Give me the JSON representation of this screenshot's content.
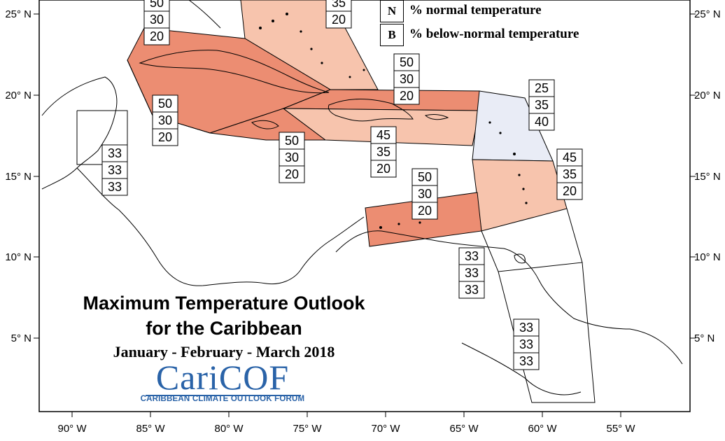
{
  "axis": {
    "lon_labels": [
      "90° W",
      "85° W",
      "80° W",
      "75° W",
      "70° W",
      "65° W",
      "60° W",
      "55° W"
    ],
    "lat_labels": [
      "25° N",
      "20° N",
      "15° N",
      "10° N",
      "5° N"
    ]
  },
  "legend": {
    "items": [
      {
        "key": "N",
        "text": "% normal temperature"
      },
      {
        "key": "B",
        "text": "% below-normal temperature"
      }
    ]
  },
  "title": {
    "line1": "Maximum Temperature Outlook",
    "line2": "for the Caribbean",
    "line3": "January - February - March 2018"
  },
  "logo": {
    "name": "CariCOF",
    "subtitle": "CARIBBEAN CLIMATE OUTLOOK FORUM"
  },
  "colors": {
    "above_50": "#ec8d72",
    "above_45": "#f7c4ad",
    "normal": "#e9ecf6",
    "boundary": "#000000"
  },
  "probability_boxes": [
    {
      "region": "bahamas-west",
      "values": [
        "50",
        "30",
        "20"
      ]
    },
    {
      "region": "bahamas-east",
      "values": [
        "35",
        "20"
      ]
    },
    {
      "region": "turks-caicos",
      "values": [
        "50",
        "30",
        "20"
      ]
    },
    {
      "region": "cuba-west",
      "values": [
        "50",
        "30",
        "20"
      ]
    },
    {
      "region": "jamaica",
      "values": [
        "50",
        "30",
        "20"
      ]
    },
    {
      "region": "hispaniola-puerto-rico",
      "values": [
        "45",
        "35",
        "20"
      ]
    },
    {
      "region": "northern-leeward-islands",
      "values": [
        "25",
        "35",
        "40"
      ]
    },
    {
      "region": "windward-islands",
      "values": [
        "45",
        "35",
        "20"
      ]
    },
    {
      "region": "abc-islands",
      "values": [
        "50",
        "30",
        "20"
      ]
    },
    {
      "region": "belize",
      "values": [
        "33",
        "33",
        "33"
      ]
    },
    {
      "region": "trinidad-tobago",
      "values": [
        "33",
        "33",
        "33"
      ]
    },
    {
      "region": "guianas",
      "values": [
        "33",
        "33",
        "33"
      ]
    }
  ]
}
